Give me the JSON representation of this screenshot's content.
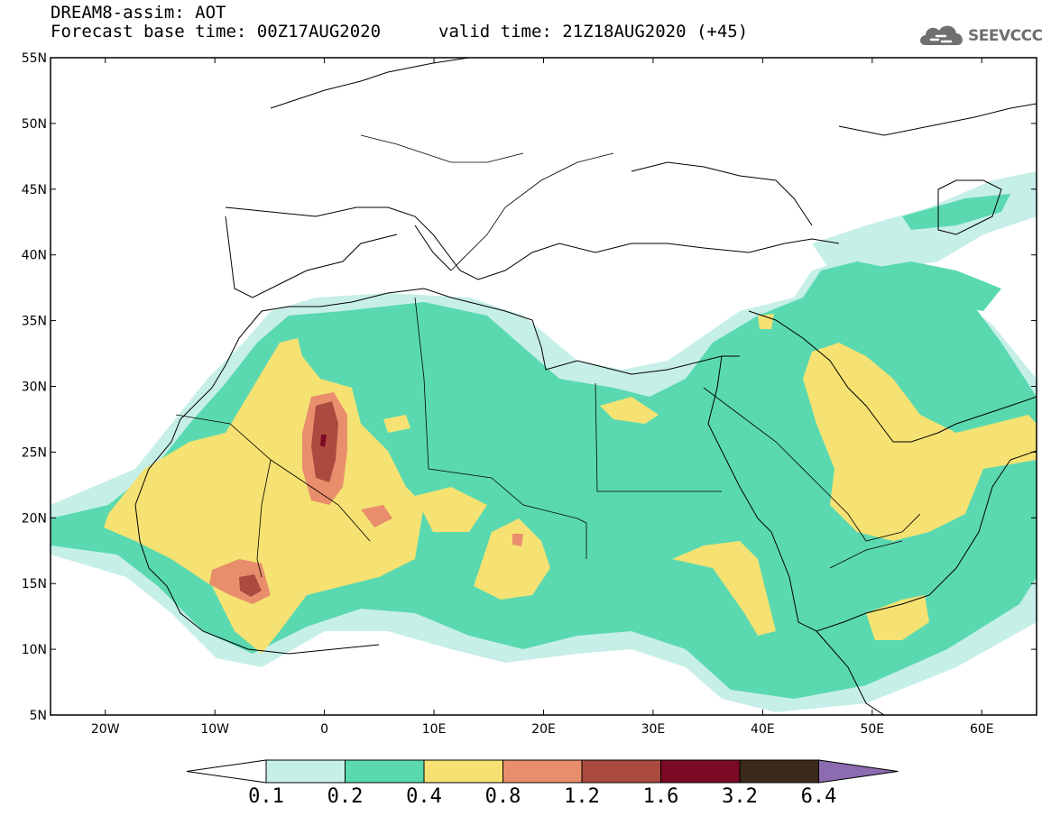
{
  "title": {
    "line1": "DREAM8-assim: AOT",
    "line2": "Forecast base time: 00Z17AUG2020",
    "valid": "valid time: 21Z18AUG2020 (+45)"
  },
  "logo": {
    "text": "SEEVCCC",
    "icon": "cloud-icon",
    "color": "#6f6f6f"
  },
  "map": {
    "lat_range": [
      5,
      55
    ],
    "lon_range": [
      -25,
      65
    ],
    "lat_ticks": [
      "5N",
      "10N",
      "15N",
      "20N",
      "25N",
      "30N",
      "35N",
      "40N",
      "45N",
      "50N",
      "55N"
    ],
    "lon_ticks": [
      "20W",
      "10W",
      "0",
      "10E",
      "20E",
      "30E",
      "40E",
      "50E",
      "60E"
    ],
    "field": "Aerosol Optical Thickness",
    "hotspots": [
      {
        "name": "central-sahara-max",
        "lon": 0.5,
        "lat": 26.0,
        "max_level": 1.2
      },
      {
        "name": "mali-max",
        "lon": -7.0,
        "lat": 15.5,
        "max_level": 1.2
      },
      {
        "name": "niger-max",
        "lon": 3.5,
        "lat": 20.5,
        "max_level": 0.8
      },
      {
        "name": "chad-max",
        "lon": 17.5,
        "lat": 18.0,
        "max_level": 0.8
      },
      {
        "name": "arabia-max",
        "lon": 49.0,
        "lat": 25.0,
        "max_level": 0.8
      },
      {
        "name": "horn-max",
        "lon": 52.0,
        "lat": 12.5,
        "max_level": 0.8
      }
    ]
  },
  "colorbar": {
    "levels": [
      "0.1",
      "0.2",
      "0.4",
      "0.8",
      "1.2",
      "1.6",
      "3.2",
      "6.4"
    ],
    "colors": [
      "#c6efe8",
      "#5ad9b0",
      "#f5e272",
      "#e98e6c",
      "#ab4a3e",
      "#7b0a25",
      "#3b2a1a",
      "#8c6bb0"
    ],
    "under_color": "#ffffff"
  }
}
